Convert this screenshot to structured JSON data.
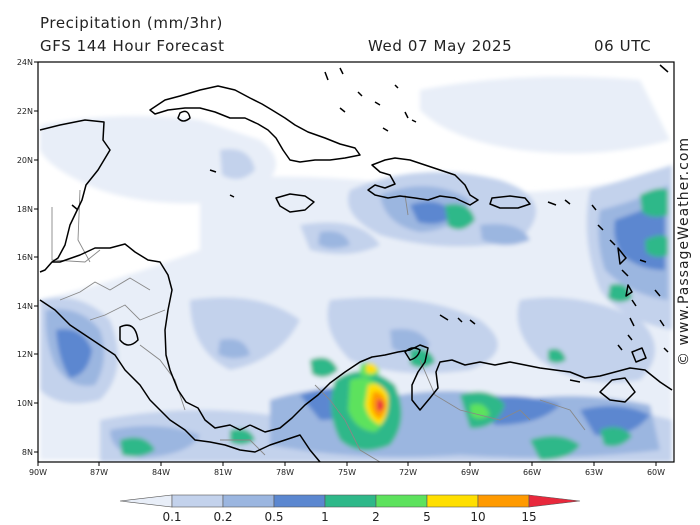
{
  "header": {
    "title_line1": "Precipitation (mm/3hr)",
    "title_line2": "GFS 144 Hour Forecast",
    "date": "Wed 07 May 2025",
    "time": "06 UTC"
  },
  "axes": {
    "lat_labels": [
      "24N",
      "22N",
      "20N",
      "18N",
      "16N",
      "14N",
      "12N",
      "10N",
      "8N"
    ],
    "lon_labels": [
      "90W",
      "87W",
      "84W",
      "81W",
      "78W",
      "75W",
      "72W",
      "69W",
      "66W",
      "63W",
      "60W"
    ]
  },
  "credit": "© www.PassageWeather.com",
  "colorbar": {
    "labels": [
      "0.1",
      "0.2",
      "0.5",
      "1",
      "2",
      "5",
      "10",
      "15"
    ],
    "colors": [
      "#e8eef8",
      "#c3d2ec",
      "#9bb6e0",
      "#5b87d0",
      "#2eb889",
      "#5de25d",
      "#ffdf00",
      "#ff9a00",
      "#e8283c"
    ]
  },
  "colors": {
    "land_outline": "#000000",
    "border": "#888888",
    "frame": "#000000"
  }
}
